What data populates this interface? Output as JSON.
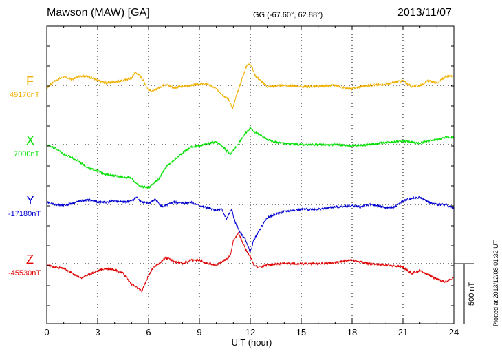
{
  "header": {
    "station": "Mawson (MAW)  [GA]",
    "coords": "GG (-67.60°,  62.88°)",
    "date": "2013/11/07"
  },
  "plotted_note": "Plotted at 2013/12/08 01:32 UT",
  "scale_label": "500 nT",
  "colors": {
    "F": "#f0b000",
    "X": "#00e000",
    "Y": "#0000d0",
    "Z": "#e00000"
  },
  "chart_data": {
    "type": "line",
    "title": "Mawson (MAW)  [GA]",
    "xlabel": "U T (hour)",
    "ylabel": "",
    "xlim": [
      0,
      24
    ],
    "xticks": [
      "0",
      "3",
      "6",
      "9",
      "12",
      "15",
      "18",
      "21",
      "24"
    ],
    "units_per_div": 500,
    "series": [
      {
        "name": "F",
        "baseline_label": "49170nT",
        "baseline_nT": 49170,
        "x": [
          0,
          0.5,
          1,
          1.5,
          2,
          2.5,
          3,
          3.5,
          4,
          4.5,
          5,
          5.2,
          5.5,
          5.7,
          6,
          6.3,
          6.6,
          7,
          7.5,
          8,
          8.5,
          9,
          9.5,
          10,
          10.4,
          10.8,
          10.95,
          11.2,
          11.5,
          11.8,
          12,
          12.3,
          12.6,
          13,
          14,
          15,
          16,
          17,
          17.5,
          18,
          18.5,
          19,
          20,
          21,
          21.5,
          22,
          22.5,
          23,
          23.5,
          24
        ],
        "values": [
          -20,
          40,
          70,
          50,
          80,
          70,
          40,
          20,
          30,
          40,
          60,
          110,
          80,
          40,
          -40,
          -50,
          -20,
          10,
          -20,
          -10,
          0,
          10,
          10,
          -30,
          -80,
          -130,
          -200,
          -80,
          50,
          170,
          180,
          80,
          40,
          -10,
          0,
          -10,
          -10,
          0,
          -20,
          -30,
          -10,
          0,
          10,
          40,
          -10,
          0,
          40,
          20,
          70,
          80
        ]
      },
      {
        "name": "X",
        "baseline_label": "7000nT",
        "baseline_nT": 7000,
        "x": [
          0,
          0.5,
          1,
          1.5,
          2,
          2.5,
          3,
          3.5,
          4,
          4.5,
          5,
          5.3,
          5.6,
          6,
          6.3,
          6.6,
          7,
          7.5,
          8,
          8.5,
          9,
          9.5,
          10,
          10.4,
          10.8,
          11,
          11.3,
          11.7,
          12,
          12.3,
          12.6,
          13,
          13.5,
          14,
          15,
          16,
          17,
          18,
          19,
          20,
          21,
          21.5,
          22,
          22.5,
          23,
          23.5,
          24
        ],
        "values": [
          0,
          -30,
          -80,
          -110,
          -150,
          -200,
          -220,
          -250,
          -260,
          -270,
          -280,
          -330,
          -350,
          -360,
          -320,
          -290,
          -190,
          -130,
          -70,
          -20,
          -10,
          10,
          20,
          -20,
          -80,
          -50,
          10,
          90,
          140,
          100,
          80,
          40,
          20,
          10,
          0,
          0,
          0,
          -10,
          0,
          20,
          30,
          20,
          10,
          30,
          40,
          60,
          60
        ]
      },
      {
        "name": "Y",
        "baseline_label": "-17180nT",
        "baseline_nT": -17180,
        "x": [
          0,
          0.5,
          1,
          1.5,
          2,
          2.5,
          3,
          3.5,
          4,
          4.5,
          5,
          5.3,
          5.6,
          6,
          6.4,
          6.8,
          7,
          7.5,
          8,
          8.5,
          9,
          9.5,
          10,
          10.3,
          10.6,
          10.9,
          11.1,
          11.4,
          11.7,
          12,
          12.2,
          12.5,
          13,
          13.5,
          14,
          15,
          16,
          17,
          18,
          18.5,
          19,
          19.5,
          20,
          20.5,
          21,
          21.5,
          22,
          22.5,
          23,
          23.5,
          24
        ],
        "values": [
          20,
          0,
          -10,
          10,
          30,
          40,
          20,
          20,
          30,
          20,
          30,
          60,
          20,
          10,
          40,
          -20,
          -10,
          20,
          10,
          20,
          -10,
          -30,
          -50,
          -40,
          -120,
          -40,
          -150,
          -230,
          -290,
          -400,
          -300,
          -220,
          -110,
          -80,
          -60,
          -40,
          -40,
          -20,
          -10,
          -20,
          0,
          -10,
          -30,
          -20,
          30,
          50,
          60,
          20,
          0,
          0,
          -30
        ]
      },
      {
        "name": "Z",
        "baseline_label": "-45530nT",
        "baseline_nT": -45530,
        "x": [
          0,
          0.5,
          1,
          1.5,
          2,
          2.5,
          3,
          3.5,
          4,
          4.5,
          5,
          5.3,
          5.6,
          6,
          6.3,
          6.6,
          7,
          7.5,
          8,
          8.5,
          9,
          9.5,
          10,
          10.4,
          10.8,
          11,
          11.3,
          11.6,
          11.8,
          12,
          12.2,
          12.5,
          13,
          14,
          15,
          16,
          17,
          18,
          19,
          20,
          21,
          21.5,
          22,
          22.5,
          23,
          23.5,
          24
        ],
        "values": [
          -10,
          -30,
          -40,
          -80,
          -120,
          -90,
          -60,
          -40,
          -50,
          -80,
          -170,
          -200,
          -230,
          -100,
          -30,
          0,
          50,
          20,
          0,
          30,
          30,
          0,
          -10,
          20,
          60,
          190,
          260,
          160,
          100,
          60,
          -10,
          -30,
          -10,
          0,
          0,
          0,
          10,
          30,
          0,
          -10,
          -30,
          -80,
          -60,
          -90,
          -130,
          -150,
          -120
        ]
      }
    ]
  }
}
